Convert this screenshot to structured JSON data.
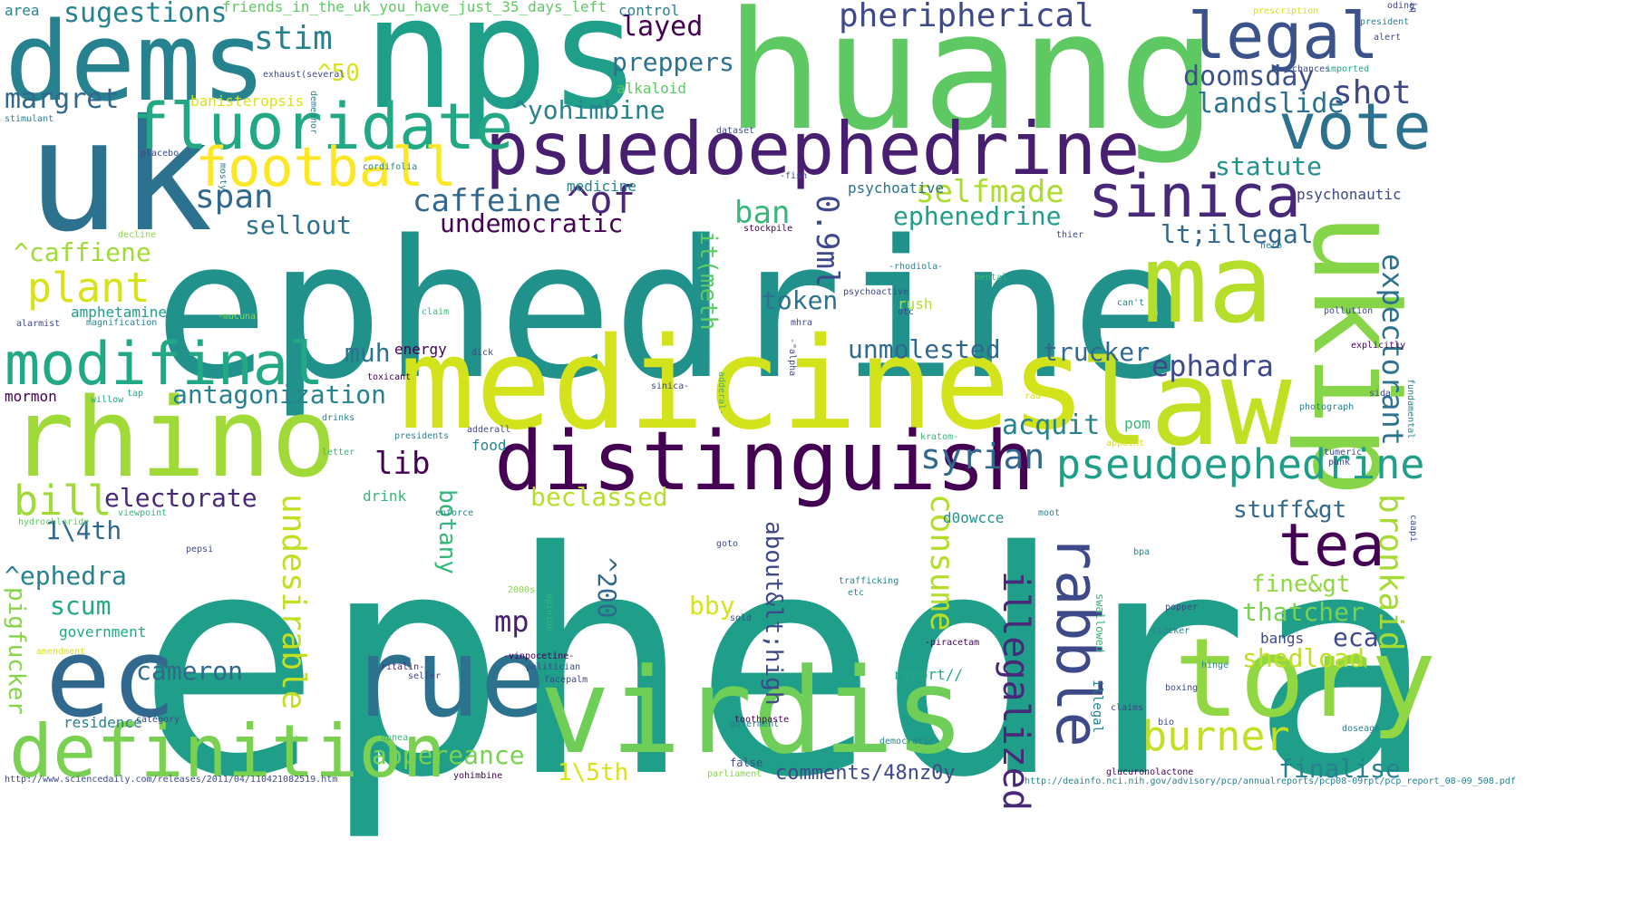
{
  "palette": {
    "dark_purple": "#440154",
    "purple": "#482878",
    "indigo": "#3e4989",
    "blue": "#31688e",
    "teal_blue": "#26828e",
    "teal": "#1f9e89",
    "green_teal": "#35b779",
    "green": "#6ece58",
    "lime": "#b5de2b",
    "yellow": "#fde725"
  },
  "words": [
    {
      "text": "ephedra",
      "color": "#1f9e89"
    },
    {
      "text": "ephedrine",
      "color": "#21918c"
    },
    {
      "text": "huang",
      "color": "#5ec962"
    },
    {
      "text": "nps",
      "color": "#1f9e89"
    },
    {
      "text": "dems",
      "color": "#26828e"
    },
    {
      "text": "uk",
      "color": "#2c728e"
    },
    {
      "text": "medicines",
      "color": "#d2e21b"
    },
    {
      "text": "law",
      "color": "#c2df23"
    },
    {
      "text": "ma",
      "color": "#b5de2b"
    },
    {
      "text": "rhino",
      "color": "#a0da39"
    },
    {
      "text": "virdis",
      "color": "#6ece58"
    },
    {
      "text": "rue",
      "color": "#2c728e"
    },
    {
      "text": "tory",
      "color": "#90d743"
    },
    {
      "text": "ec",
      "color": "#31688e"
    },
    {
      "text": "definition",
      "color": "#7ad151"
    },
    {
      "text": "distinguish",
      "color": "#440154"
    },
    {
      "text": "psuedoephedrine",
      "color": "#481f70"
    },
    {
      "text": "ukip",
      "color": "#86d549"
    },
    {
      "text": "legal",
      "color": "#3b528b"
    },
    {
      "text": "fluoridate",
      "color": "#22a884"
    },
    {
      "text": "football",
      "color": "#fde725"
    },
    {
      "text": "sinica",
      "color": "#482878"
    },
    {
      "text": "vote",
      "color": "#2c728e"
    },
    {
      "text": "modifinal",
      "color": "#22a884"
    },
    {
      "text": "rabble",
      "color": "#3e4989"
    },
    {
      "text": "tea",
      "color": "#440154"
    },
    {
      "text": "pseudoephedrine",
      "color": "#1f9e89"
    },
    {
      "text": "burner",
      "color": "#c2df23"
    },
    {
      "text": "illegalized",
      "color": "#482878"
    },
    {
      "text": "bill",
      "color": "#a0da39"
    },
    {
      "text": "plant",
      "color": "#d8e219"
    },
    {
      "text": "expectorant",
      "color": "#2c728e"
    },
    {
      "text": "bronkaid",
      "color": "#a5db36"
    },
    {
      "text": "undesirable",
      "color": "#c2df23"
    },
    {
      "text": "consume",
      "color": "#b5de2b"
    },
    {
      "text": "selfmade",
      "color": "#addc30"
    },
    {
      "text": "syrian",
      "color": "#31688e"
    },
    {
      "text": "shot",
      "color": "#3e4989"
    },
    {
      "text": "doomsday",
      "color": "#3b528b"
    },
    {
      "text": "landslide",
      "color": "#2c728e"
    },
    {
      "text": "statute",
      "color": "#21918c"
    },
    {
      "text": "span",
      "color": "#31688e"
    },
    {
      "text": "stim",
      "color": "#26828e"
    },
    {
      "text": "sugestions",
      "color": "#26828e"
    },
    {
      "text": "margret",
      "color": "#31688e"
    },
    {
      "text": "layed",
      "color": "#440154"
    },
    {
      "text": "preppers",
      "color": "#2c728e"
    },
    {
      "text": "^yohimbine",
      "color": "#26828e"
    },
    {
      "text": "caffeine",
      "color": "#31688e"
    },
    {
      "text": "^of",
      "color": "#482878"
    },
    {
      "text": "undemocratic",
      "color": "#440154"
    },
    {
      "text": "ban",
      "color": "#35b779"
    },
    {
      "text": "0.9ml",
      "color": "#3e4989"
    },
    {
      "text": "ephenedrine",
      "color": "#1f9e89"
    },
    {
      "text": "lt;illegal",
      "color": "#31688e"
    },
    {
      "text": "token",
      "color": "#2c728e"
    },
    {
      "text": "unmolested",
      "color": "#31688e"
    },
    {
      "text": "trucker",
      "color": "#31688e"
    },
    {
      "text": "ephadra",
      "color": "#3e4989"
    },
    {
      "text": "acquit",
      "color": "#26828e"
    },
    {
      "text": "antagonization",
      "color": "#26828e"
    },
    {
      "text": "lib",
      "color": "#440154"
    },
    {
      "text": "muh",
      "color": "#2c728e"
    },
    {
      "text": "electorate",
      "color": "#482878"
    },
    {
      "text": "1\\4th",
      "color": "#31688e"
    },
    {
      "text": "^ephedra",
      "color": "#26828e"
    },
    {
      "text": "scum",
      "color": "#22a884"
    },
    {
      "text": "cameron",
      "color": "#31688e"
    },
    {
      "text": "sellout",
      "color": "#2c728e"
    },
    {
      "text": "^caffiene",
      "color": "#a0da39"
    },
    {
      "text": "^50",
      "color": "#d8e219"
    },
    {
      "text": "it(meth",
      "color": "#5ec962"
    },
    {
      "text": "about&lt;high",
      "color": "#3e4989"
    },
    {
      "text": "botany",
      "color": "#35b779"
    },
    {
      "text": "^200",
      "color": "#31688e"
    },
    {
      "text": "mp",
      "color": "#481f70"
    },
    {
      "text": "bby",
      "color": "#d8e219"
    },
    {
      "text": "beclassed",
      "color": "#b5de2b"
    },
    {
      "text": "appereance",
      "color": "#7ad151"
    },
    {
      "text": "1\\5th",
      "color": "#d8e219"
    },
    {
      "text": "stuff&gt",
      "color": "#31688e"
    },
    {
      "text": "fine&gt",
      "color": "#90d743"
    },
    {
      "text": "thatcher",
      "color": "#7ad151"
    },
    {
      "text": "eca",
      "color": "#3e4989"
    },
    {
      "text": "shedload",
      "color": "#bddf26"
    },
    {
      "text": "finalise",
      "color": "#26828e"
    },
    {
      "text": "comments/48nz0y",
      "color": "#3e4989"
    },
    {
      "text": "pigfucker",
      "color": "#86d549"
    },
    {
      "text": "government",
      "color": "#22a884"
    },
    {
      "text": "residence",
      "color": "#26828e"
    },
    {
      "text": "mormon",
      "color": "#440154"
    },
    {
      "text": "amphetamine",
      "color": "#1f9e89"
    },
    {
      "text": "alarmist",
      "color": "#3e4989"
    },
    {
      "text": "energy",
      "color": "#440154"
    },
    {
      "text": "drink",
      "color": "#35b779"
    },
    {
      "text": "d0owcce",
      "color": "#21918c"
    },
    {
      "text": "pom",
      "color": "#35b779"
    },
    {
      "text": "rush",
      "color": "#b5de2b"
    },
    {
      "text": "psychoative",
      "color": "#2c728e"
    },
    {
      "text": "psychonautic",
      "color": "#3e4989"
    },
    {
      "text": "medicine",
      "color": "#26828e"
    },
    {
      "text": "alkaloid",
      "color": "#5ec962"
    },
    {
      "text": "control",
      "color": "#26828e"
    },
    {
      "text": "area",
      "color": "#26828e"
    },
    {
      "text": "friends_in_the_uk_you_have_just_35_days_left",
      "color": "#5ec962"
    },
    {
      "text": "pheripherical",
      "color": "#3e4989"
    },
    {
      "text": "banisteropsis",
      "color": "#d8e219"
    },
    {
      "text": "exhaust(several",
      "color": "#3e4989"
    },
    {
      "text": "stimulant",
      "color": "#26828e"
    },
    {
      "text": "placebo",
      "color": "#3e4989"
    },
    {
      "text": "demeanor",
      "color": "#26828e"
    },
    {
      "text": "cordifolia",
      "color": "#26828e"
    },
    {
      "text": "mosty",
      "color": "#26828e"
    },
    {
      "text": "decline",
      "color": "#86d549"
    },
    {
      "text": "dataset",
      "color": "#3e4989"
    },
    {
      "text": "-fish",
      "color": "#3e4989"
    },
    {
      "text": "stockpile",
      "color": "#440154"
    },
    {
      "text": "-rhodiola-",
      "color": "#26828e"
    },
    {
      "text": "psychoactive",
      "color": "#3e4989"
    },
    {
      "text": "mhra",
      "color": "#3e4989"
    },
    {
      "text": "magnification",
      "color": "#26828e"
    },
    {
      "text": "-mucuna",
      "color": "#86d549"
    },
    {
      "text": "claim",
      "color": "#35b779"
    },
    {
      "text": "dick",
      "color": "#3e4989"
    },
    {
      "text": "toxicant",
      "color": "#440154"
    },
    {
      "text": "willow",
      "color": "#22a884"
    },
    {
      "text": "tap",
      "color": "#22a884"
    },
    {
      "text": "drinks",
      "color": "#26828e"
    },
    {
      "text": "presidents",
      "color": "#26828e"
    },
    {
      "text": "adderall",
      "color": "#3e4989"
    },
    {
      "text": "food",
      "color": "#26828e"
    },
    {
      "text": "letter",
      "color": "#35b779"
    },
    {
      "text": "viewpoint",
      "color": "#35b779"
    },
    {
      "text": "hydrochloride",
      "color": "#5ec962"
    },
    {
      "text": "pepsi",
      "color": "#3e4989"
    },
    {
      "text": "enforce",
      "color": "#26828e"
    },
    {
      "text": "goto",
      "color": "#3e4989"
    },
    {
      "text": "2000s",
      "color": "#86d549"
    },
    {
      "text": "opinion",
      "color": "#35b779"
    },
    {
      "text": "amendment",
      "color": "#d8e219"
    },
    {
      "text": "ritalin-",
      "color": "#482878"
    },
    {
      "text": "seller",
      "color": "#3e4989"
    },
    {
      "text": "-vinpocetine-",
      "color": "#440154"
    },
    {
      "text": "politician",
      "color": "#3e4989"
    },
    {
      "text": "facepalm",
      "color": "#3e4989"
    },
    {
      "text": "category",
      "color": "#3e4989"
    },
    {
      "text": "apnea",
      "color": "#35b779"
    },
    {
      "text": "yohimbine",
      "color": "#440154"
    },
    {
      "text": "toothpaste",
      "color": "#440154"
    },
    {
      "text": "sold",
      "color": "#3e4989"
    },
    {
      "text": "goverment",
      "color": "#26828e"
    },
    {
      "text": "parliament",
      "color": "#86d549"
    },
    {
      "text": "false",
      "color": "#3e4989"
    },
    {
      "text": "democratic",
      "color": "#26828e"
    },
    {
      "text": "trafficking",
      "color": "#26828e"
    },
    {
      "text": "etc",
      "color": "#26828e"
    },
    {
      "text": "report//",
      "color": "#22a884"
    },
    {
      "text": "-piracetam",
      "color": "#440154"
    },
    {
      "text": "moot",
      "color": "#26828e"
    },
    {
      "text": "swallowed",
      "color": "#35b779"
    },
    {
      "text": "illegal",
      "color": "#26828e"
    },
    {
      "text": "claims",
      "color": "#3e4989"
    },
    {
      "text": "glucuronolactone",
      "color": "#440154"
    },
    {
      "text": "sinica-",
      "color": "#3e4989"
    },
    {
      "text": "adderal-",
      "color": "#35b779"
    },
    {
      "text": "-\"alpha",
      "color": "#3e4989"
    },
    {
      "text": "kratom-",
      "color": "#35b779"
    },
    {
      "text": "otc",
      "color": "#3e4989"
    },
    {
      "text": "mental",
      "color": "#35b779"
    },
    {
      "text": "thier",
      "color": "#3e4989"
    },
    {
      "text": "herb",
      "color": "#26828e"
    },
    {
      "text": "chances",
      "color": "#3e4989"
    },
    {
      "text": "imported",
      "color": "#22a884"
    },
    {
      "text": "president",
      "color": "#26828e"
    },
    {
      "text": "prescription",
      "color": "#d8e219"
    },
    {
      "text": "oding",
      "color": "#3e4989"
    },
    {
      "text": "alert",
      "color": "#3e4989"
    },
    {
      "text": "iq",
      "color": "#3e4989"
    },
    {
      "text": "can't",
      "color": "#26828e"
    },
    {
      "text": "pollution",
      "color": "#3e4989"
    },
    {
      "text": "explicitly",
      "color": "#440154"
    },
    {
      "text": "sida",
      "color": "#3e4989"
    },
    {
      "text": "rad",
      "color": "#d8e219"
    },
    {
      "text": "appoint",
      "color": "#d8e219"
    },
    {
      "text": "photograph",
      "color": "#26828e"
    },
    {
      "text": "tumeric",
      "color": "#3e4989"
    },
    {
      "text": "punk",
      "color": "#3e4989"
    },
    {
      "text": "fundamental",
      "color": "#26828e"
    },
    {
      "text": "caapi",
      "color": "#3e4989"
    },
    {
      "text": "bpa",
      "color": "#26828e"
    },
    {
      "text": "popper",
      "color": "#3e4989"
    },
    {
      "text": "stacker",
      "color": "#26828e"
    },
    {
      "text": "hinge",
      "color": "#26828e"
    },
    {
      "text": "boxing",
      "color": "#3e4989"
    },
    {
      "text": "bio",
      "color": "#3e4989"
    },
    {
      "text": "doseage",
      "color": "#26828e"
    },
    {
      "text": "bangs",
      "color": "#3e4989"
    },
    {
      "text": "http://www.sciencedaily.com/releases/2011/04/110421082519.htm",
      "color": "#3e4989"
    },
    {
      "text": "http://deainfo.nci.nih.gov/advisory/pcp/annualreports/pcp08-09rpt/pcp_report_08-09_508.pdf",
      "color": "#26828e"
    }
  ]
}
